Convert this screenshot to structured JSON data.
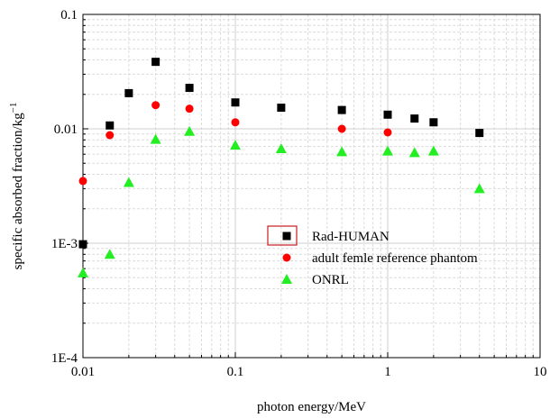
{
  "chart_data": {
    "type": "scatter",
    "title": "",
    "xlabel": "photon energy/MeV",
    "ylabel": "specific absorbed fraction/kg",
    "ylabel_superscript": "−1",
    "xscale": "log",
    "yscale": "log",
    "xlim": [
      0.01,
      10
    ],
    "ylim": [
      0.0001,
      0.1
    ],
    "x_tick_labels": [
      "0.01",
      "0.1",
      "1",
      "10"
    ],
    "y_tick_labels": [
      "1E-4",
      "1E-3",
      "0.01",
      "0.1"
    ],
    "grid": true,
    "legend_position": "center-right",
    "series": [
      {
        "name": "Rad-HUMAN",
        "marker": "square",
        "color": "#000000",
        "x": [
          0.01,
          0.015,
          0.02,
          0.03,
          0.05,
          0.1,
          0.2,
          0.5,
          1,
          1.5,
          2,
          4
        ],
        "y": [
          0.00098,
          0.0107,
          0.0205,
          0.0385,
          0.0228,
          0.017,
          0.0153,
          0.0146,
          0.0133,
          0.0123,
          0.0114,
          0.0092
        ]
      },
      {
        "name": "adult femle reference phantom",
        "marker": "circle",
        "color": "#ff0000",
        "x": [
          0.01,
          0.015,
          0.03,
          0.05,
          0.1,
          0.5,
          1
        ],
        "y": [
          0.0035,
          0.0088,
          0.0161,
          0.015,
          0.0114,
          0.01,
          0.0093
        ]
      },
      {
        "name": "ONRL",
        "marker": "triangle",
        "color": "#22ee22",
        "x": [
          0.01,
          0.015,
          0.02,
          0.03,
          0.05,
          0.1,
          0.2,
          0.5,
          1,
          1.5,
          2,
          4
        ],
        "y": [
          0.00055,
          0.0008,
          0.0034,
          0.0081,
          0.0095,
          0.0072,
          0.0067,
          0.0063,
          0.0064,
          0.0062,
          0.0064,
          0.003
        ]
      }
    ]
  }
}
